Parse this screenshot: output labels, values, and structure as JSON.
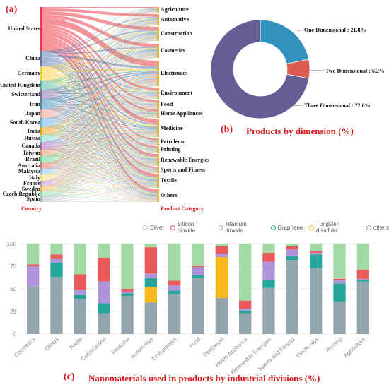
{
  "chart_data": [
    {
      "panel": "(a)",
      "type": "sankey",
      "left_axis_label": "Country",
      "right_axis_label": "Product Category",
      "countries": [
        "United States",
        "China",
        "Germany",
        "United Kingdom",
        "Switzerland",
        "Iran",
        "Japan",
        "South Korea",
        "India",
        "Russia",
        "Canada",
        "Taiwan",
        "Brazil",
        "Australia",
        "Malaysia",
        "Italy",
        "France",
        "Sweden",
        "Czech Republic",
        "Spain"
      ],
      "categories": [
        "Agriculture",
        "Automotive",
        "Construction",
        "Cosmetics",
        "Electronics",
        "Environment",
        "Food",
        "Home Appliances",
        "Medicine",
        "Petroleum",
        "Printing",
        "Renewable Energies",
        "Sports and Fitness",
        "Textile",
        "Others"
      ],
      "colors": {
        "United States": "#ee3b48",
        "China": "#5b7bb5",
        "Germany": "#f4d03f",
        "United Kingdom": "#48b89e",
        "Switzerland": "#7f6aa8",
        "Iran": "#3a8fb7",
        "Japan": "#f1948a",
        "South Korea": "#5dade2",
        "India": "#f39c12",
        "Russia": "#76d7c4",
        "Canada": "#a569bd",
        "Taiwan": "#e59866",
        "Brazil": "#58d68d",
        "Australia": "#ec7063",
        "Malaysia": "#85c1e9",
        "Italy": "#f7dc6f",
        "France": "#bb8fce",
        "Sweden": "#f5b041",
        "Czech Republic": "#82e0aa",
        "Spain": "#aab7b8"
      }
    },
    {
      "panel": "(b)",
      "type": "pie",
      "title": "Products by dimension (%)",
      "slices": [
        {
          "label": "One Dimensional : 21.8%",
          "value": 21.8,
          "color": "#3391bd"
        },
        {
          "label": "Two Dimensional : 6.2%",
          "value": 6.2,
          "color": "#d95b4f"
        },
        {
          "label": "Three Dimensional : 72.0%",
          "value": 72.0,
          "color": "#665d95"
        }
      ]
    },
    {
      "panel": "(c)",
      "type": "bar",
      "stacked": true,
      "title": "Nanomaterials used in products by industrial divisions (%)",
      "categories": [
        "Cosmetics",
        "Others",
        "Textile",
        "Construction",
        "Medicine",
        "Automotive",
        "Environment",
        "Food",
        "Petroleum",
        "Home Appliance",
        "Renewable Energies",
        "Sports and Fitness",
        "Electronics",
        "Printing",
        "Agriculture"
      ],
      "ylim": [
        0,
        100
      ],
      "yticks": [
        0,
        25,
        50,
        75,
        100
      ],
      "grid": true,
      "legend_position": "top-right",
      "series": [
        {
          "name": "others",
          "color": "#93a6ad",
          "values": [
            53,
            63,
            38,
            23,
            42,
            35,
            44,
            62,
            40,
            23,
            51,
            82,
            73,
            36,
            58
          ]
        },
        {
          "name": "Tungsten disulfide",
          "color": "#f7b91a",
          "values": [
            0,
            0,
            0,
            0,
            0,
            17,
            0,
            0,
            45,
            0,
            0,
            0,
            0,
            0,
            0
          ]
        },
        {
          "name": "Graphene",
          "color": "#26a69a",
          "values": [
            0,
            16,
            5,
            11,
            3,
            10,
            4,
            3,
            0,
            3,
            9,
            4,
            15,
            20,
            2
          ]
        },
        {
          "name": "Titanium dioxide",
          "color": "#b094db",
          "values": [
            22,
            4,
            6,
            24,
            2,
            5,
            6,
            9,
            4,
            2,
            20,
            8,
            2,
            4,
            1
          ]
        },
        {
          "name": "Silicon dioxide",
          "color": "#ea5a5a",
          "values": [
            2,
            5,
            17,
            26,
            3,
            29,
            5,
            2,
            8,
            9,
            10,
            3,
            2,
            1,
            10
          ]
        },
        {
          "name": "Silver",
          "color": "#a3d9a5",
          "values": [
            23,
            12,
            34,
            16,
            50,
            4,
            41,
            24,
            3,
            63,
            10,
            3,
            8,
            39,
            29
          ]
        }
      ],
      "legend_order": [
        "Silver",
        "Silicon dioxide",
        "Titanium dioxide",
        "Graphene",
        "Tungsten disulfide",
        "others"
      ]
    }
  ]
}
